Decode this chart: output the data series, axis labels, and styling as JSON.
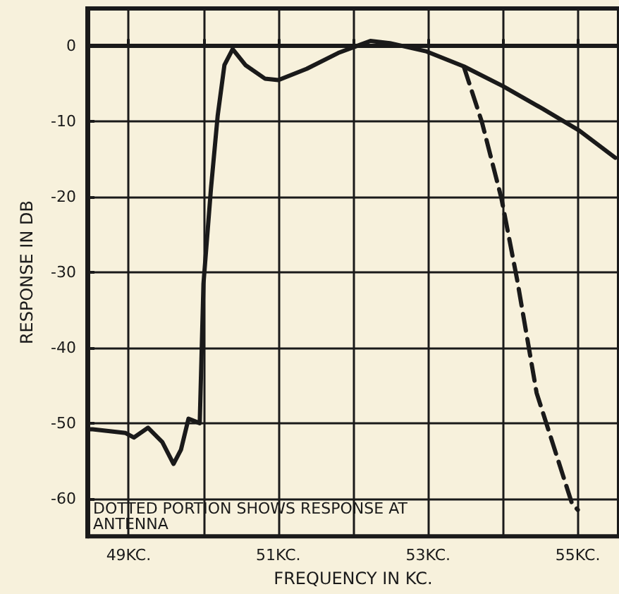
{
  "chart_data": {
    "type": "line",
    "xlabel": "FREQUENCY IN KC.",
    "ylabel": "RESPONSE IN DB",
    "xlim": [
      48.45,
      55.55
    ],
    "ylim": [
      -65,
      5
    ],
    "xticks": [
      {
        "value": 49,
        "label": "49KC."
      },
      {
        "value": 50,
        "label": null
      },
      {
        "value": 51,
        "label": "51KC."
      },
      {
        "value": 52,
        "label": null
      },
      {
        "value": 53,
        "label": "53KC."
      },
      {
        "value": 54,
        "label": null
      },
      {
        "value": 55,
        "label": "55KC."
      }
    ],
    "yticks": [
      -60,
      -50,
      -40,
      -30,
      -20,
      -10,
      0
    ],
    "grid": true,
    "marker": "none",
    "series": [
      {
        "color": "#1a1a1a",
        "line_style": "solid",
        "x": [
          48.45,
          48.52,
          48.96,
          49.07,
          49.26,
          49.45,
          49.6,
          49.7,
          49.8,
          49.95,
          50.0,
          50.1,
          50.19,
          50.28,
          50.39,
          50.56,
          50.82,
          51.0,
          51.38,
          51.8,
          52.23,
          52.49,
          52.98,
          53.48,
          54.0,
          54.53,
          55.02,
          55.5
        ],
        "values": [
          -50.8,
          -50.8,
          -51.3,
          -51.9,
          -50.6,
          -52.5,
          -55.4,
          -53.5,
          -49.4,
          -50,
          -31.5,
          -18.9,
          -9.2,
          -2.5,
          -0.4,
          -2.5,
          -4.3,
          -4.5,
          -3,
          -0.9,
          0.7,
          0.4,
          -0.7,
          -2.7,
          -5.3,
          -8.3,
          -11.2,
          -14.8
        ]
      },
      {
        "color": "#1a1a1a",
        "line_style": "dashed",
        "x": [
          53.48,
          53.72,
          53.98,
          54.19,
          54.45,
          54.92,
          55.0
        ],
        "values": [
          -2.8,
          -10.1,
          -20.2,
          -31,
          -46,
          -60.6,
          -61.5
        ]
      }
    ],
    "annotations": [
      "DOTTED PORTION SHOWS RESPONSE AT ANTENNA"
    ]
  }
}
